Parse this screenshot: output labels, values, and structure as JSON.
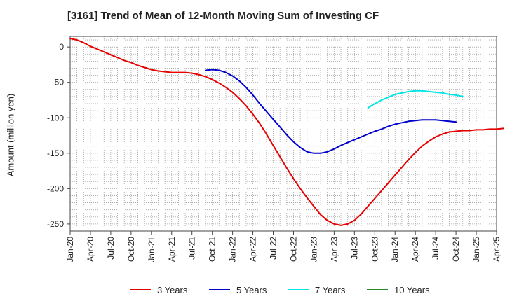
{
  "chart_data": {
    "type": "line",
    "title": "[3161]  Trend of Mean of 12-Month Moving Sum of Investing CF",
    "xlabel": "",
    "ylabel": "Amount (million yen)",
    "ylim": [
      -260,
      15
    ],
    "yticks": [
      0,
      -50,
      -100,
      -150,
      -200,
      -250
    ],
    "ytick_labels": [
      "0",
      "-50",
      "-100",
      "-150",
      "-200",
      "-250"
    ],
    "xtick_labels": [
      "Jan-20",
      "Apr-20",
      "Jul-20",
      "Oct-20",
      "Jan-21",
      "Apr-21",
      "Jul-21",
      "Oct-21",
      "Jan-22",
      "Apr-22",
      "Jul-22",
      "Oct-22",
      "Jan-23",
      "Apr-23",
      "Jul-23",
      "Oct-23",
      "Jan-24",
      "Apr-24",
      "Jul-24",
      "Oct-24",
      "Jan-25",
      "Apr-25"
    ],
    "grid": true,
    "legend_position": "bottom",
    "series": [
      {
        "name": "3 Years",
        "color": "#e60000",
        "start": "Jan-20",
        "values": [
          12,
          10,
          6,
          1,
          -3,
          -7,
          -11,
          -15,
          -19,
          -22,
          -26,
          -29,
          -32,
          -34,
          -35,
          -36,
          -36,
          -36,
          -37,
          -39,
          -42,
          -46,
          -51,
          -57,
          -64,
          -73,
          -83,
          -95,
          -108,
          -123,
          -139,
          -155,
          -171,
          -186,
          -200,
          -213,
          -225,
          -237,
          -245,
          -250,
          -252,
          -250,
          -245,
          -236,
          -225,
          -214,
          -203,
          -192,
          -181,
          -170,
          -159,
          -149,
          -140,
          -133,
          -127,
          -123,
          -120,
          -119,
          -118,
          -118,
          -117,
          -117,
          -116,
          -116,
          -115
        ]
      },
      {
        "name": "5 Years",
        "color": "#0000cc",
        "start": "Sep-21",
        "values": [
          -33,
          -32,
          -33,
          -36,
          -41,
          -48,
          -57,
          -68,
          -80,
          -91,
          -102,
          -113,
          -124,
          -134,
          -142,
          -148,
          -150,
          -150,
          -148,
          -144,
          -139,
          -135,
          -131,
          -127,
          -123,
          -119,
          -116,
          -112,
          -109,
          -107,
          -105,
          -104,
          -103,
          -103,
          -103,
          -104,
          -105,
          -106
        ]
      },
      {
        "name": "7 Years",
        "color": "#00e5e5",
        "start": "Sep-23",
        "values": [
          -86,
          -80,
          -75,
          -71,
          -67,
          -65,
          -63,
          -62,
          -62,
          -63,
          -64,
          -65,
          -67,
          -68,
          -70
        ]
      },
      {
        "name": "10 Years",
        "color": "#228b22",
        "start": "",
        "values": []
      }
    ]
  }
}
